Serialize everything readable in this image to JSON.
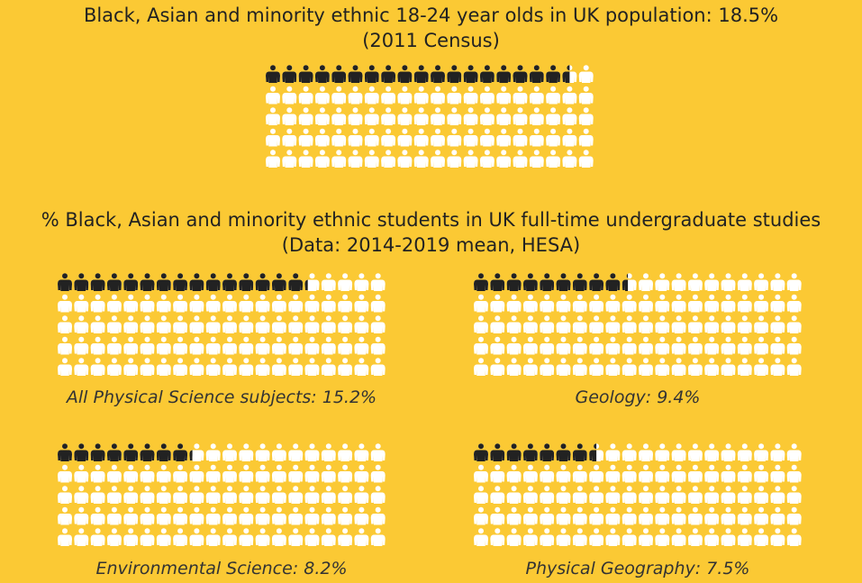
{
  "colors": {
    "background": "#fbc934",
    "highlight": "#222222",
    "base": "#ffffff"
  },
  "icon": "person-icon",
  "headline": {
    "line1": "Black, Asian and minority ethnic 18-24 year olds in UK population: 18.5%",
    "line2": "(2011 Census)"
  },
  "subheadline": {
    "line1": "% Black, Asian and minority ethnic students in UK full-time undergraduate studies",
    "line2": "(Data: 2014-2019 mean, HESA)"
  },
  "chart_data": [
    {
      "type": "pictogram",
      "grid": "20x5",
      "total": 100,
      "value": 18.5,
      "label": ""
    },
    {
      "type": "pictogram",
      "grid": "20x5",
      "total": 100,
      "value": 15.2,
      "label": "All Physical Science subjects: 15.2%"
    },
    {
      "type": "pictogram",
      "grid": "20x5",
      "total": 100,
      "value": 9.4,
      "label": "Geology: 9.4%"
    },
    {
      "type": "pictogram",
      "grid": "20x5",
      "total": 100,
      "value": 8.2,
      "label": "Environmental Science: 8.2%"
    },
    {
      "type": "pictogram",
      "grid": "20x5",
      "total": 100,
      "value": 7.5,
      "label": "Physical Geography: 7.5%"
    }
  ]
}
